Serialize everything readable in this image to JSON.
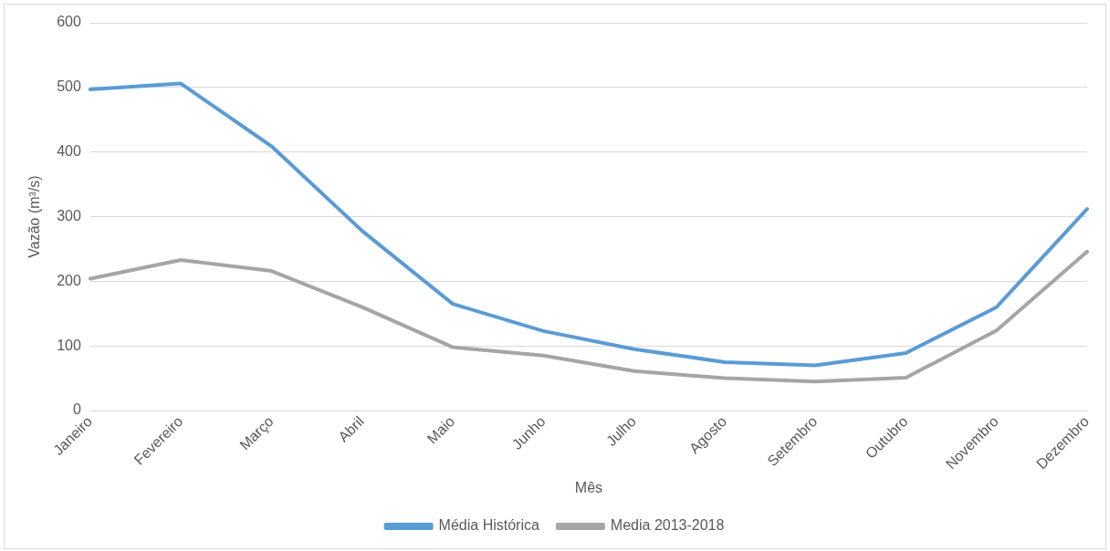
{
  "chart_data": {
    "type": "line",
    "xlabel": "Mês",
    "ylabel": "Vazão (m³/s)",
    "categories": [
      "Janeiro",
      "Fevereiro",
      "Março",
      "Abril",
      "Maio",
      "Junho",
      "Julho",
      "Agosto",
      "Setembro",
      "Outubro",
      "Novembro",
      "Dezembro"
    ],
    "series": [
      {
        "name": "Média Histórica",
        "color": "#5b9bd5",
        "values": [
          497,
          506,
          409,
          278,
          165,
          123,
          95,
          75,
          70,
          89,
          160,
          312
        ]
      },
      {
        "name": "Media 2013-2018",
        "color": "#a5a5a5",
        "values": [
          204,
          233,
          216,
          160,
          98,
          85,
          61,
          50,
          45,
          51,
          124,
          246
        ]
      }
    ],
    "ylim": [
      0,
      600
    ],
    "yticks": [
      0,
      100,
      200,
      300,
      400,
      500,
      600
    ],
    "grid": "y",
    "legend": "bottom",
    "marker": "none",
    "line_style": "solid"
  }
}
